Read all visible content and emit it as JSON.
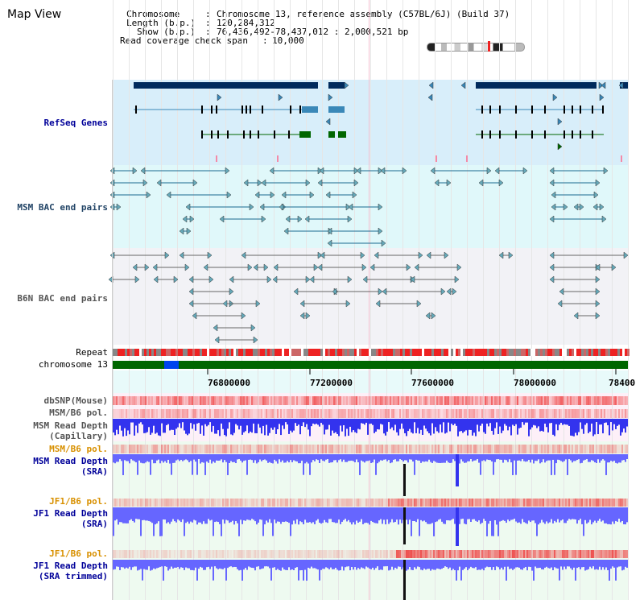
{
  "header": {
    "title": "Map View",
    "chromosome_label": "Chromosome",
    "chromosome_value": "Chromosome 13, reference assembly (C57BL/6J) (Build 37)",
    "length_label": "Length (b.p.)",
    "length_value": "120,284,312",
    "show_label": "Show (b.p.)",
    "show_value": "76,436,492-78,437,012 : 2,000,521 bp",
    "coverage_label": "Read coverage check span",
    "coverage_value": "10,000"
  },
  "tracks": {
    "refseq": "RefSeq Genes",
    "msm_bac": "MSM BAC end pairs",
    "b6n_bac": "B6N BAC end pairs",
    "repeat": "Repeat",
    "chromosome": "chromosome 13",
    "dbsnp": "dbSNP(Mouse)",
    "msm_b6_pol_1": "MSM/B6 pol.",
    "msm_depth_cap_1": "MSM Read Depth",
    "msm_depth_cap_2": "(Capillary)",
    "msm_b6_pol_2": "MSM/B6 pol.",
    "msm_depth_sra_1": "MSM Read Depth",
    "msm_depth_sra_2": "(SRA)",
    "jf1_b6_pol_1": "JF1/B6 pol.",
    "jf1_depth_sra_1": "JF1 Read Depth",
    "jf1_depth_sra_2": "(SRA)",
    "jf1_b6_pol_2": "JF1/B6 pol.",
    "jf1_depth_trim_1": "JF1 Read Depth",
    "jf1_depth_trim_2": "(SRA trimmed)"
  },
  "axis": {
    "ticks": [
      "76800000",
      "77200000",
      "77600000",
      "78000000",
      "78400"
    ]
  },
  "colors": {
    "refseq_bg": "#d8eefa",
    "msm_bg": "#e0f8fa",
    "b6n_bg": "#f0f0f4",
    "gene_dark": "#002a5c",
    "gene_mid": "#3a88b8",
    "gene_green": "#006600",
    "depth_blue": "#3333ee",
    "pol_red": "#ee2222",
    "chrom_green": "#006600"
  }
}
